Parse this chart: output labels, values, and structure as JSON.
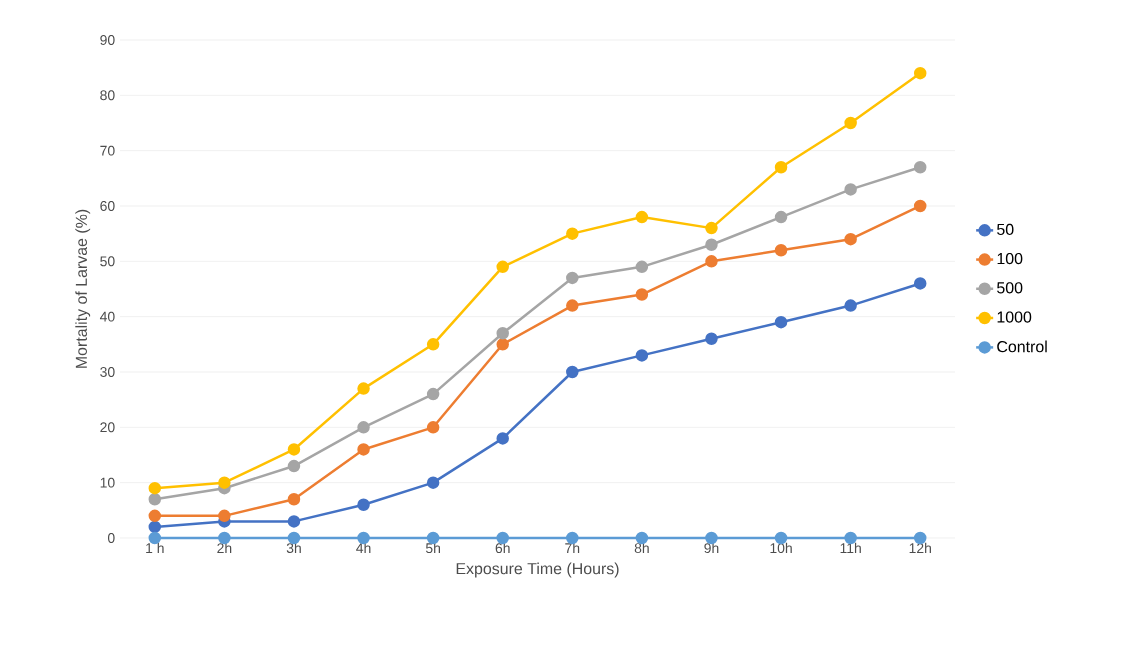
{
  "chart_data": {
    "type": "line",
    "xlabel": "Exposure Time (Hours)",
    "ylabel": "Mortality of Larvae (%)",
    "categories": [
      "1 h",
      "2h",
      "3h",
      "4h",
      "5h",
      "6h",
      "7h",
      "8h",
      "9h",
      "10h",
      "11h",
      "12h"
    ],
    "series": [
      {
        "name": "50",
        "color": "#4472c4",
        "values": [
          2,
          3,
          3,
          6,
          10,
          18,
          30,
          33,
          36,
          39,
          42,
          46
        ]
      },
      {
        "name": "100",
        "color": "#ed7d31",
        "values": [
          4,
          4,
          7,
          16,
          20,
          35,
          42,
          44,
          50,
          52,
          54,
          60
        ]
      },
      {
        "name": "500",
        "color": "#a5a5a5",
        "values": [
          7,
          9,
          13,
          20,
          26,
          37,
          47,
          49,
          53,
          58,
          63,
          67
        ]
      },
      {
        "name": "1000",
        "color": "#ffc000",
        "values": [
          9,
          10,
          16,
          27,
          35,
          49,
          55,
          58,
          56,
          67,
          75,
          84
        ]
      },
      {
        "name": "Control",
        "color": "#5b9bd5",
        "values": [
          0,
          0,
          0,
          0,
          0,
          0,
          0,
          0,
          0,
          0,
          0,
          0
        ]
      }
    ],
    "ylim": [
      0,
      90
    ],
    "yticks": [
      0,
      10,
      20,
      30,
      40,
      50,
      60,
      70,
      80,
      90
    ],
    "grid": "y",
    "legend": "right",
    "marker": "circle",
    "line_style": "solid"
  }
}
